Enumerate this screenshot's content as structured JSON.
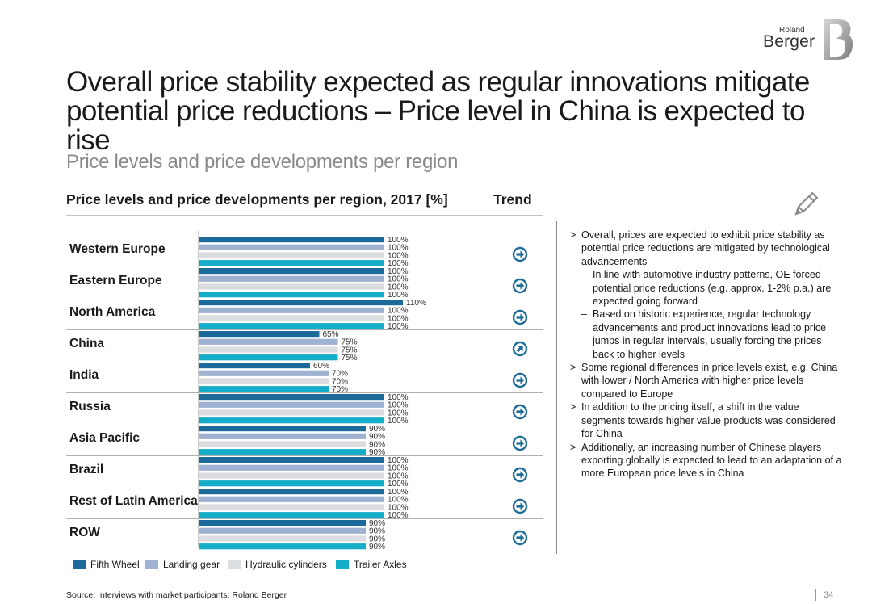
{
  "logo": {
    "line1": "Roland",
    "line2": "Berger"
  },
  "title": "Overall price stability expected as regular innovations mitigate potential price reductions – Price level in China is expected to rise",
  "subtitle": "Price levels and price developments per region",
  "chart_heading": "Price levels and price developments per region, 2017 [%]",
  "trend_heading": "Trend",
  "colors": {
    "fifth_wheel": "#1c6a9a",
    "landing_gear": "#9fb2d2",
    "hydraulic_cylinders": "#dcdde0",
    "trailer_axles": "#14aec9",
    "trend_icon": "#1f6c96",
    "separator": "#b0b0b0"
  },
  "chart_data": {
    "type": "bar",
    "orientation": "horizontal",
    "title": "Price levels and price developments per region, 2017 [%]",
    "unit": "%",
    "categories": [
      "Western Europe",
      "Eastern Europe",
      "North America",
      "China",
      "India",
      "Russia",
      "Asia Pacific",
      "Brazil",
      "Rest of Latin America",
      "ROW"
    ],
    "series": [
      {
        "name": "Fifth Wheel",
        "values": [
          100,
          100,
          110,
          65,
          60,
          100,
          90,
          100,
          100,
          90
        ]
      },
      {
        "name": "Landing gear",
        "values": [
          100,
          100,
          100,
          75,
          70,
          100,
          90,
          100,
          100,
          90
        ]
      },
      {
        "name": "Hydraulic cylinders",
        "values": [
          100,
          100,
          100,
          75,
          70,
          100,
          90,
          100,
          100,
          90
        ]
      },
      {
        "name": "Trailer Axles",
        "values": [
          100,
          100,
          100,
          75,
          70,
          100,
          90,
          100,
          100,
          90
        ]
      }
    ],
    "trend": [
      "stable",
      "stable",
      "stable",
      "up",
      "stable",
      "stable",
      "stable",
      "stable",
      "stable",
      "stable"
    ],
    "group_separators_after": [
      "North America",
      "India",
      "Asia Pacific",
      "Rest of Latin America"
    ],
    "xlim": [
      0,
      130
    ],
    "legend_position": "bottom"
  },
  "bullets": [
    {
      "level": 1,
      "marker": ">",
      "text": "Overall, prices are expected to exhibit price stability as potential price reductions are mitigated by technological advancements"
    },
    {
      "level": 2,
      "marker": "–",
      "text": "In line with automotive industry patterns, OE forced potential price reductions (e.g. approx. 1-2% p.a.) are expected going forward"
    },
    {
      "level": 2,
      "marker": "–",
      "text": "Based on historic experience, regular technology advancements and product innovations lead to price jumps in regular intervals, usually forcing the prices back to higher levels"
    },
    {
      "level": 1,
      "marker": ">",
      "text": "Some regional differences in price levels exist, e.g. China with lower / North America with higher price levels compared to Europe"
    },
    {
      "level": 1,
      "marker": ">",
      "text": "In addition to the pricing itself, a shift in the value segments towards higher value products was considered for China"
    },
    {
      "level": 1,
      "marker": ">",
      "text": "Additionally, an increasing number of Chinese players exporting globally is expected to lead to an adaptation of a more European price levels in China"
    }
  ],
  "legend": [
    "Fifth Wheel",
    "Landing gear",
    "Hydraulic cylinders",
    "Trailer Axles"
  ],
  "footer": {
    "source": "Source: Interviews with market participants; Roland Berger",
    "page": "34"
  }
}
